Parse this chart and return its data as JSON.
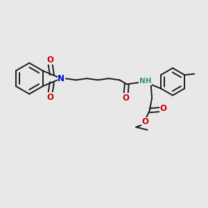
{
  "bg_color": "#e8e8e8",
  "bond_color": "#1a1a1a",
  "oxygen_color": "#cc0000",
  "nitrogen_color": "#0000cc",
  "nh_color": "#3a8888",
  "lw": 1.4,
  "dbg": 0.013,
  "fs": 8.5,
  "fss": 7.5,
  "xlim": [
    -0.05,
    1.05
  ],
  "ylim": [
    -0.05,
    1.05
  ]
}
